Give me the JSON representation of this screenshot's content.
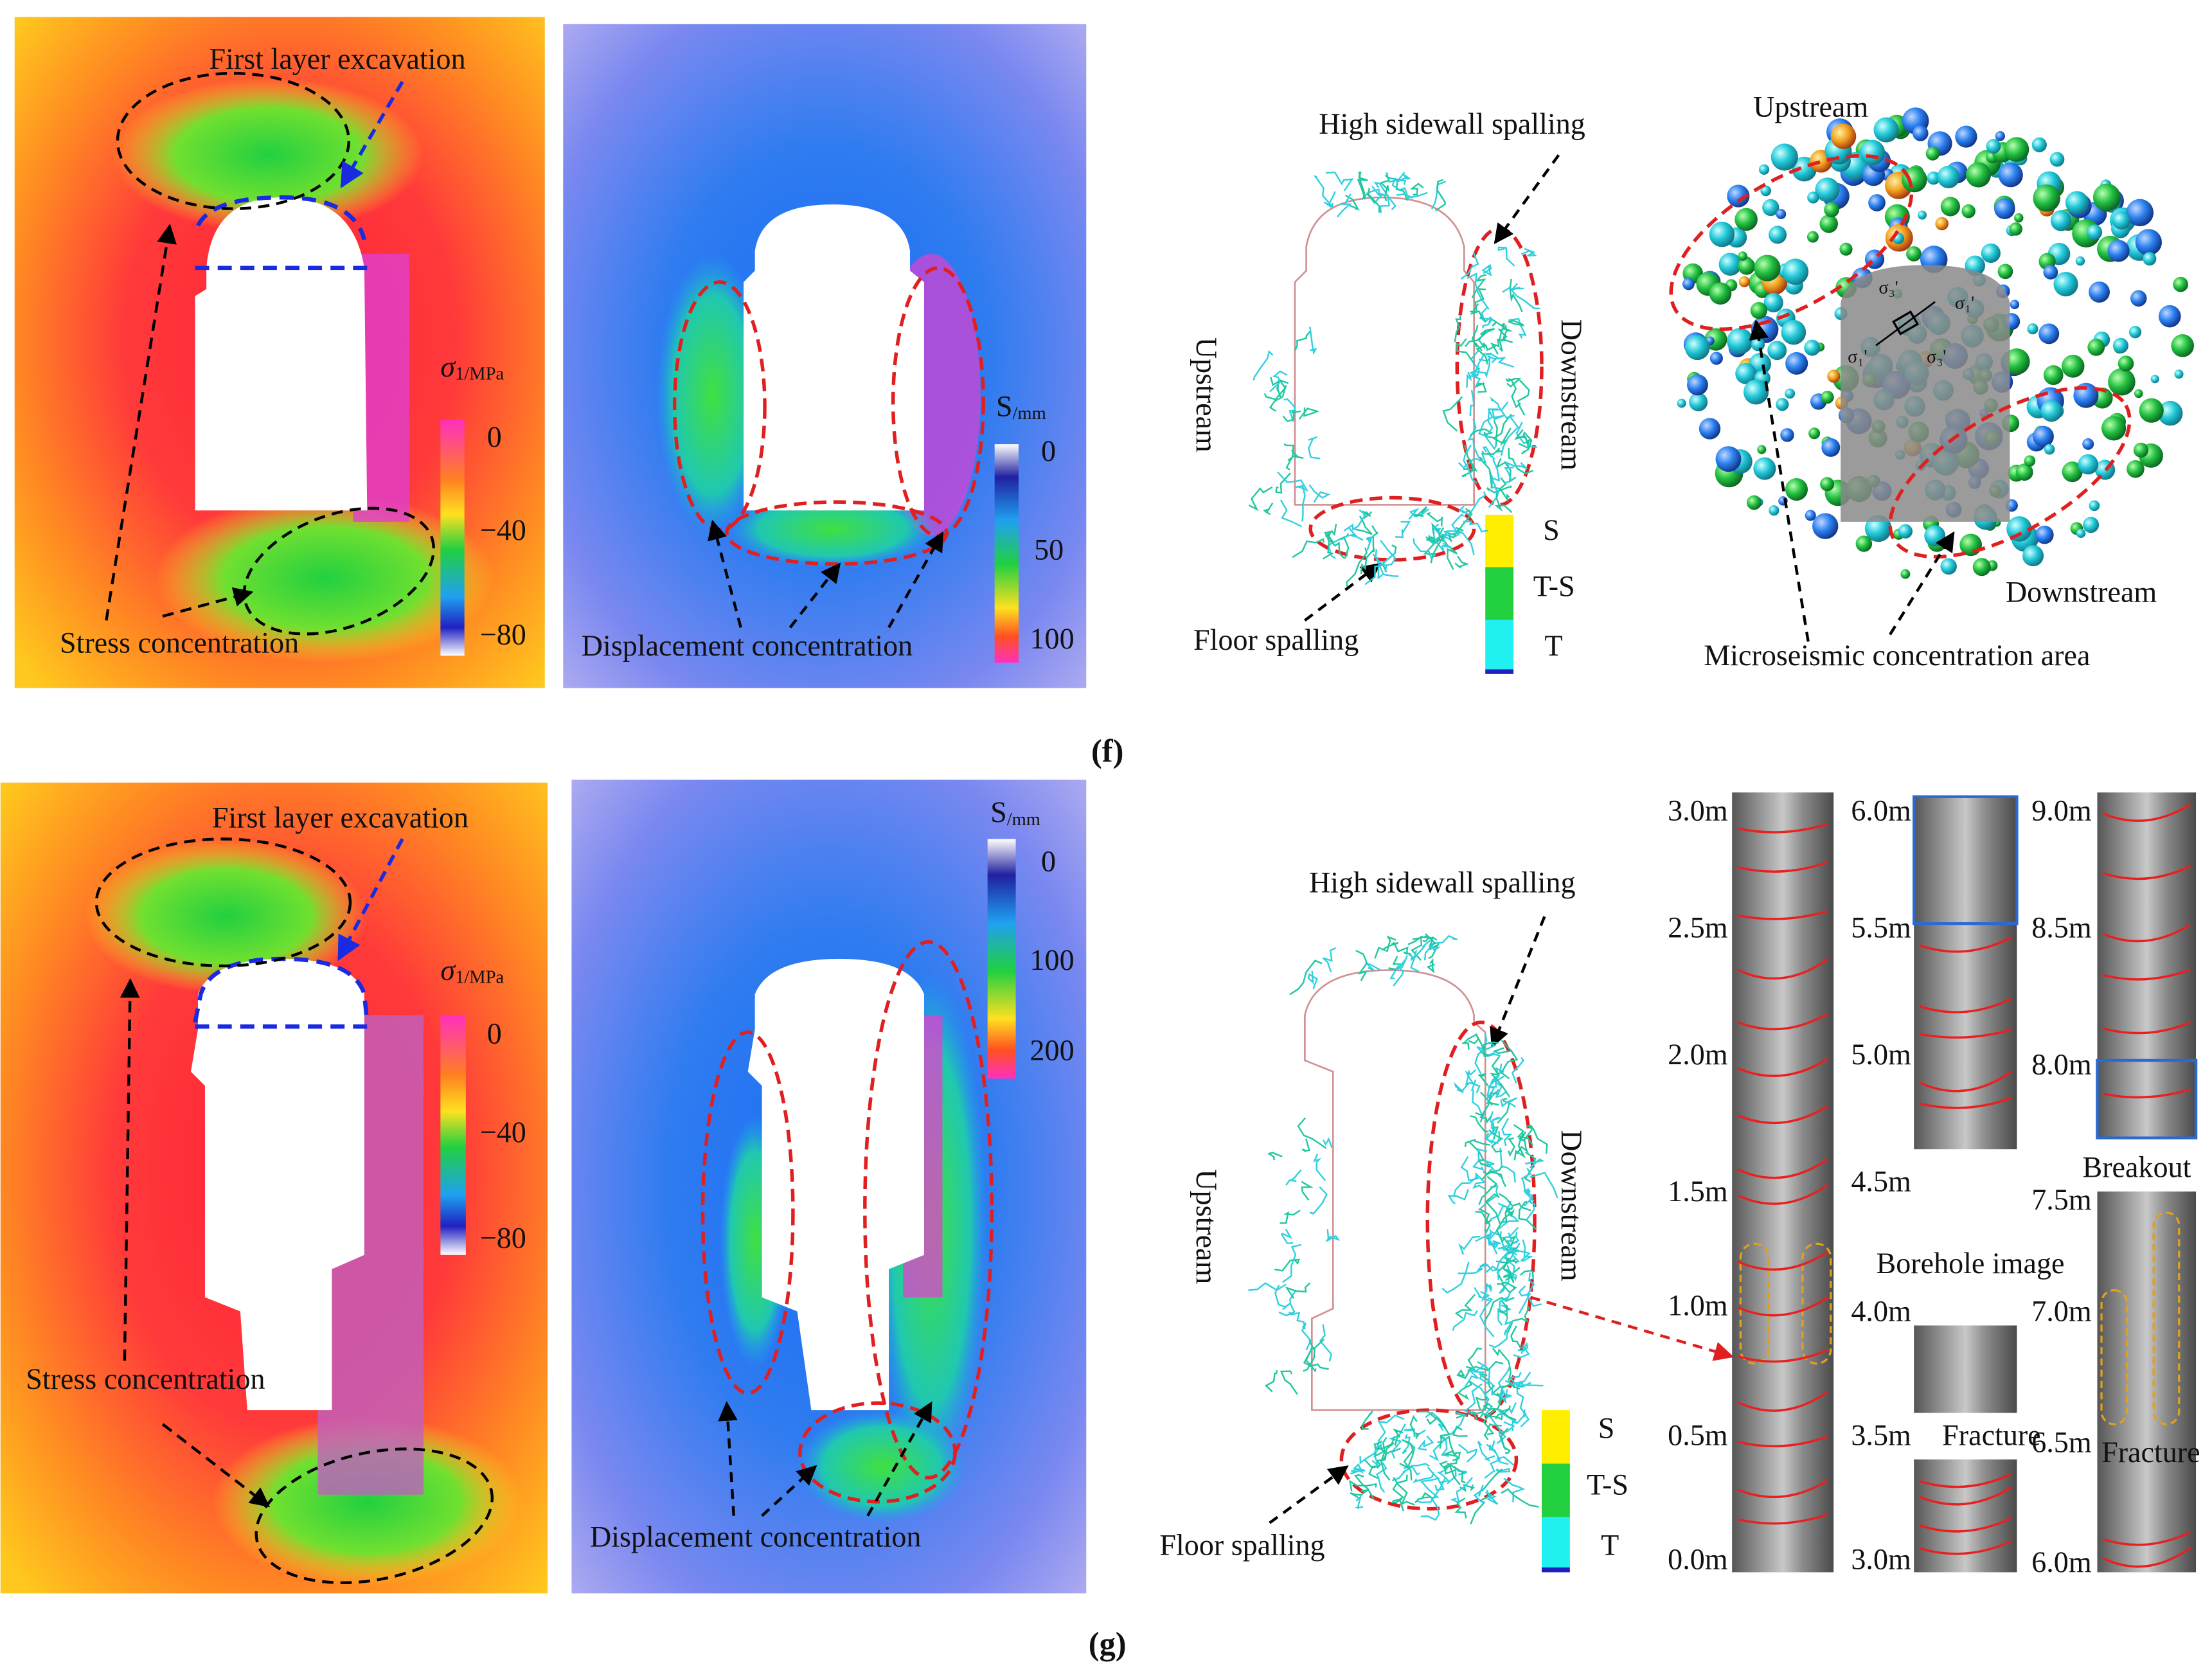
{
  "panel_f": {
    "label": "(f)",
    "stress": {
      "annotation_top": "First layer excavation",
      "annotation_bottom": "Stress concentration",
      "colorbar_symbol": "σ",
      "colorbar_unit": "1/MPa",
      "colorbar_ticks": [
        "0",
        "−40",
        "−80"
      ]
    },
    "displacement": {
      "annotation": "Displacement concentration",
      "colorbar_symbol": "S",
      "colorbar_unit": "/mm",
      "colorbar_ticks": [
        "0",
        "50",
        "100"
      ]
    },
    "spalling": {
      "annotation_top": "High sidewall spalling",
      "left": "Upstream",
      "right": "Downstream",
      "annotation_bottom": "Floor spalling",
      "legend": [
        "S",
        "T-S",
        "T"
      ]
    },
    "microseismic": {
      "top": "Upstream",
      "bottom": "Downstream",
      "caption": "Microseismic concentration area",
      "stress_labels": [
        "σ₃'",
        "σ₁'",
        "σ₁'",
        "σ₃'"
      ]
    }
  },
  "panel_g": {
    "label": "(g)",
    "stress": {
      "annotation_top": "First layer excavation",
      "annotation_bottom": "Stress concentration",
      "colorbar_symbol": "σ",
      "colorbar_unit": "1/MPa",
      "colorbar_ticks": [
        "0",
        "−40",
        "−80"
      ]
    },
    "displacement": {
      "annotation": "Displacement concentration",
      "colorbar_symbol": "S",
      "colorbar_unit": "/mm",
      "colorbar_ticks": [
        "0",
        "100",
        "200"
      ]
    },
    "spalling": {
      "annotation_top": "High sidewall spalling",
      "left": "Upstream",
      "right": "Downstream",
      "annotation_bottom": "Floor spalling",
      "legend": [
        "S",
        "T-S",
        "T"
      ]
    },
    "borehole": {
      "columns": [
        [
          "3.0m",
          "2.5m",
          "2.0m",
          "1.5m",
          "1.0m",
          "0.5m",
          "0.0m"
        ],
        [
          "6.0m",
          "5.5m",
          "5.0m",
          "4.5m",
          "4.0m",
          "3.5m",
          "3.0m"
        ],
        [
          "9.0m",
          "8.5m",
          "8.0m",
          "7.5m",
          "7.0m",
          "6.5m",
          "6.0m"
        ]
      ],
      "title": "Borehole image",
      "breakout": "Breakout",
      "fracture_1": "Fracture",
      "fracture_2": "Fracture"
    }
  }
}
